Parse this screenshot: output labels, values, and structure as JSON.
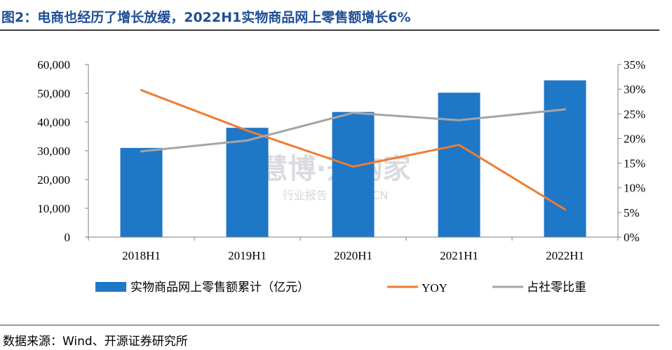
{
  "header": {
    "title": "图2：电商也经历了增长放缓，2022H1实物商品网上零售额增长6%"
  },
  "footer": {
    "source": "数据来源：Wind、开源证券研究所"
  },
  "watermark": {
    "main": "慧博·开购家",
    "sub": "行业报告 IPOIPO.CN"
  },
  "colors": {
    "bar": "#1f77c7",
    "yoy": "#ed7d31",
    "share": "#a5a5a5"
  },
  "chart_data": {
    "type": "bar",
    "categories": [
      "2018H1",
      "2019H1",
      "2020H1",
      "2021H1",
      "2022H1"
    ],
    "series": [
      {
        "name": "实物商品网上零售额累计（亿元）",
        "type": "bar",
        "axis": "left",
        "values": [
          31000,
          38000,
          43500,
          50200,
          54500
        ]
      },
      {
        "name": "YOY",
        "type": "line",
        "axis": "right",
        "values": [
          29.8,
          21.6,
          14.3,
          18.7,
          5.6
        ]
      },
      {
        "name": "占社零比重",
        "type": "line",
        "axis": "right",
        "values": [
          17.4,
          19.6,
          25.2,
          23.7,
          25.9
        ]
      }
    ],
    "y_left": {
      "min": 0,
      "max": 60000,
      "ticks": [
        "0",
        "10,000",
        "20,000",
        "30,000",
        "40,000",
        "50,000",
        "60,000"
      ]
    },
    "y_right": {
      "min": 0,
      "max": 35,
      "ticks": [
        "0%",
        "5%",
        "10%",
        "15%",
        "20%",
        "25%",
        "30%",
        "35%"
      ]
    },
    "grid": false,
    "legend_position": "bottom"
  }
}
